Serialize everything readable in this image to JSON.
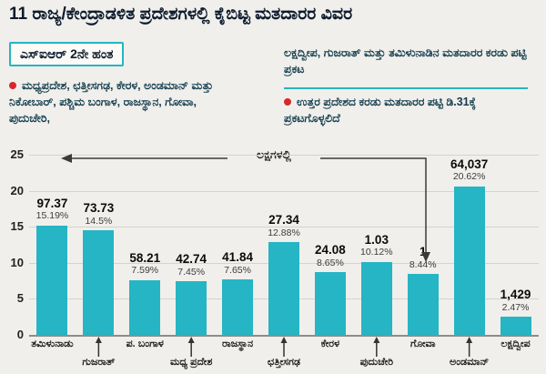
{
  "title": "11 ರಾಜ್ಯ/ಕೇಂದ್ರಾಡಳಿತ ಪ್ರದೇಶಗಳಲ್ಲಿ ಕೈಬಿಟ್ಟ ಮತದಾರರ ವಿವರ",
  "badge": "ಎಸ್ಐಆರ್ 2ನೇ ಹಂತ",
  "notes": {
    "left": "ಮಧ್ಯಪ್ರದೇಶ, ಛತ್ತೀಸಗಢ, ಕೇರಳ, ಅಂಡಮಾನ್ ಮತ್ತು ನಿಕೋಬಾರ್, ಪಶ್ಚಿಮ ಬಂಗಾಳ, ರಾಜಸ್ಥಾನ, ಗೋವಾ, ಪುದುಚೇರಿ,",
    "right_top": "ಲಕ್ಷದ್ವೀಪ, ಗುಜರಾತ್ ಮತ್ತು ತಮಿಳುನಾಡಿನ ಮತದಾರರ ಕರಡು ಪಟ್ಟಿ ಪ್ರಕಟ",
    "right_bottom": "ಉತ್ತರ ಪ್ರದೇಶದ ಕರಡು ಮತದಾರರ ಪಟ್ಟಿ ಡಿ.31ಕ್ಕೆ ಪ್ರಕಟಗೊಳ್ಳಲಿದೆ"
  },
  "chart_data": {
    "type": "bar",
    "unit_note": "ಲಕ್ಷಗಳಲ್ಲಿ",
    "categories": [
      "ತಮಿಳುನಾಡು",
      "ಗುಜರಾತ್",
      "ಪ. ಬಂಗಾಳ",
      "ಮಧ್ಯ ಪ್ರದೇಶ",
      "ರಾಜಸ್ಥಾನ",
      "ಛತ್ತೀಸಗಢ",
      "ಕೇರಳ",
      "ಪುದುಚೇರಿ",
      "ಗೋವಾ",
      "ಅಂಡಮಾನ್",
      "ಲಕ್ಷದ್ವೀಪ"
    ],
    "value_labels": [
      "97.37",
      "73.73",
      "58.21",
      "42.74",
      "41.84",
      "27.34",
      "24.08",
      "1.03",
      "1",
      "64,037",
      "1,429"
    ],
    "percent_labels": [
      "15.19%",
      "14.5%",
      "7.59%",
      "7.45%",
      "7.65%",
      "12.88%",
      "8.65%",
      "10.12%",
      "8.44%",
      "20.62%",
      "2.47%"
    ],
    "bar_heights_pct": [
      15.19,
      14.5,
      7.59,
      7.45,
      7.65,
      12.88,
      8.65,
      10.12,
      8.44,
      20.62,
      2.47
    ],
    "y_ticks": [
      0,
      5,
      10,
      15,
      20,
      25
    ],
    "ylim": [
      0,
      25
    ],
    "grid": true,
    "legend": "none",
    "bar_color": "#25b5c4"
  }
}
